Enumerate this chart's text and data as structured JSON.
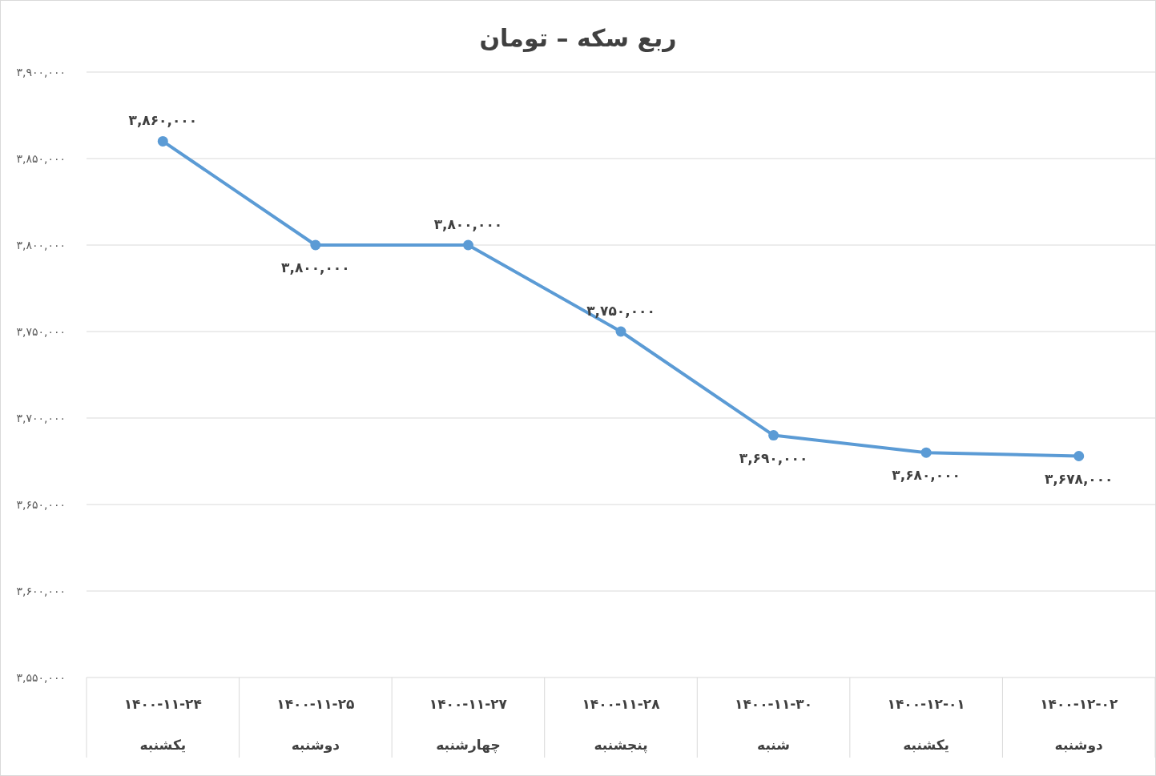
{
  "chart_data": {
    "type": "line",
    "title": "ربع سکه – تومان",
    "categories": [
      "۱۴۰۰-۱۱-۲۴\nیکشنبه",
      "۱۴۰۰-۱۱-۲۵\nدوشنبه",
      "۱۴۰۰-۱۱-۲۷\nچهارشنبه",
      "۱۴۰۰-۱۱-۲۸\nپنجشنبه",
      "۱۴۰۰-۱۱-۳۰\nشنبه",
      "۱۴۰۰-۱۲-۰۱\nیکشنبه",
      "۱۴۰۰-۱۲-۰۲\nدوشنبه"
    ],
    "series": [
      {
        "color": "#5b9bd5",
        "values": [
          3860000,
          3800000,
          3800000,
          3750000,
          3690000,
          3680000,
          3678000
        ],
        "value_labels": [
          "۳,۸۶۰,۰۰۰",
          "۳,۸۰۰,۰۰۰",
          "۳,۸۰۰,۰۰۰",
          "۳,۷۵۰,۰۰۰",
          "۳,۶۹۰,۰۰۰",
          "۳,۶۸۰,۰۰۰",
          "۳,۶۷۸,۰۰۰"
        ]
      }
    ],
    "ylim": [
      3550000,
      3900000
    ],
    "yticks": [
      {
        "value": 3550000,
        "label": "۳,۵۵۰,۰۰۰"
      },
      {
        "value": 3600000,
        "label": "۳,۶۰۰,۰۰۰"
      },
      {
        "value": 3650000,
        "label": "۳,۶۵۰,۰۰۰"
      },
      {
        "value": 3700000,
        "label": "۳,۷۰۰,۰۰۰"
      },
      {
        "value": 3750000,
        "label": "۳,۷۵۰,۰۰۰"
      },
      {
        "value": 3800000,
        "label": "۳,۸۰۰,۰۰۰"
      },
      {
        "value": 3850000,
        "label": "۳,۸۵۰,۰۰۰"
      },
      {
        "value": 3900000,
        "label": "۳,۹۰۰,۰۰۰"
      }
    ],
    "grid": "y",
    "marker": "circle",
    "line_style": "solid"
  }
}
